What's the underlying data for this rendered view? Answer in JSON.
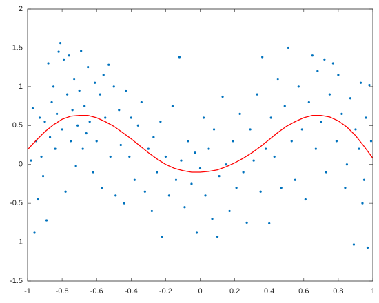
{
  "chart_data": {
    "type": "scatter",
    "xlim": [
      -1,
      1
    ],
    "xticks": [
      -1,
      -0.8,
      -0.6,
      -0.4,
      -0.2,
      0,
      0.2,
      0.4,
      0.6,
      0.8,
      1
    ],
    "ylim": [
      -1.5,
      2
    ],
    "yticks": [
      -1.5,
      -1,
      -0.5,
      0,
      0.5,
      1,
      1.5,
      2
    ],
    "grid": false,
    "series": [
      {
        "type": "scatter",
        "color": "#0072bd",
        "x": [
          -0.98,
          -0.97,
          -0.96,
          -0.95,
          -0.94,
          -0.93,
          -0.92,
          -0.91,
          -0.9,
          -0.89,
          -0.88,
          -0.87,
          -0.86,
          -0.85,
          -0.84,
          -0.83,
          -0.82,
          -0.81,
          -0.8,
          -0.79,
          -0.78,
          -0.77,
          -0.76,
          -0.75,
          -0.74,
          -0.73,
          -0.72,
          -0.71,
          -0.7,
          -0.69,
          -0.68,
          -0.67,
          -0.66,
          -0.65,
          -0.64,
          -0.62,
          -0.61,
          -0.6,
          -0.58,
          -0.57,
          -0.56,
          -0.55,
          -0.53,
          -0.52,
          -0.5,
          -0.49,
          -0.47,
          -0.46,
          -0.44,
          -0.43,
          -0.41,
          -0.4,
          -0.38,
          -0.36,
          -0.34,
          -0.32,
          -0.3,
          -0.28,
          -0.27,
          -0.25,
          -0.23,
          -0.22,
          -0.2,
          -0.18,
          -0.16,
          -0.14,
          -0.12,
          -0.11,
          -0.09,
          -0.07,
          -0.05,
          -0.03,
          -0.02,
          0,
          0.02,
          0.03,
          0.05,
          0.07,
          0.08,
          0.1,
          0.11,
          0.13,
          0.15,
          0.17,
          0.19,
          0.21,
          0.23,
          0.25,
          0.27,
          0.29,
          0.31,
          0.33,
          0.35,
          0.36,
          0.38,
          0.4,
          0.41,
          0.43,
          0.45,
          0.47,
          0.49,
          0.51,
          0.53,
          0.55,
          0.57,
          0.59,
          0.61,
          0.63,
          0.65,
          0.67,
          0.68,
          0.7,
          0.72,
          0.73,
          0.75,
          0.77,
          0.79,
          0.8,
          0.82,
          0.84,
          0.85,
          0.87,
          0.89,
          0.9,
          0.92,
          0.93,
          0.94,
          0.95,
          0.96,
          0.97,
          0.98,
          0.99
        ],
        "values": [
          0.05,
          0.72,
          -0.88,
          0.3,
          -0.45,
          0.6,
          0.1,
          -0.15,
          0.55,
          -0.72,
          1.3,
          0.35,
          0.8,
          1.0,
          0.2,
          0.65,
          1.45,
          1.56,
          0.45,
          1.35,
          -0.35,
          0.9,
          1.4,
          0.3,
          0.7,
          1.1,
          -0.02,
          0.5,
          0.95,
          1.46,
          0.2,
          0.75,
          0.4,
          1.25,
          0.55,
          -0.1,
          1.05,
          0.3,
          0.9,
          -0.3,
          1.15,
          0.6,
          1.28,
          0.1,
          1.0,
          -0.4,
          0.7,
          0.25,
          -0.5,
          0.95,
          0.1,
          0.6,
          -0.2,
          0.5,
          0.8,
          -0.35,
          0.2,
          -0.6,
          0.35,
          -0.1,
          0.55,
          -0.93,
          0.1,
          -0.4,
          0.75,
          -0.2,
          1.38,
          0.05,
          -0.55,
          0.3,
          -0.25,
          0.15,
          -0.88,
          -0.05,
          0.6,
          -0.4,
          0.2,
          -0.7,
          0.45,
          -0.93,
          -0.15,
          0.87,
          0.0,
          -0.6,
          0.3,
          -0.3,
          0.65,
          -0.1,
          -0.75,
          0.45,
          0.05,
          0.9,
          -0.35,
          1.38,
          0.2,
          -0.76,
          0.6,
          0.1,
          1.1,
          -0.3,
          0.75,
          1.5,
          0.3,
          -0.2,
          1.0,
          0.45,
          -0.45,
          0.8,
          1.4,
          0.2,
          1.2,
          0.55,
          1.35,
          -0.1,
          0.9,
          1.3,
          0.3,
          1.15,
          0.65,
          -0.3,
          0.0,
          0.85,
          -1.03,
          0.45,
          0.2,
          1.05,
          -0.5,
          -0.2,
          0.6,
          -1.07,
          1.02,
          0.3
        ]
      },
      {
        "type": "line",
        "color": "#ff0000",
        "x": [
          -1,
          -0.95,
          -0.9,
          -0.85,
          -0.8,
          -0.75,
          -0.7,
          -0.65,
          -0.6,
          -0.55,
          -0.5,
          -0.45,
          -0.4,
          -0.35,
          -0.3,
          -0.25,
          -0.2,
          -0.15,
          -0.1,
          -0.05,
          0,
          0.05,
          0.1,
          0.15,
          0.2,
          0.25,
          0.3,
          0.35,
          0.4,
          0.45,
          0.5,
          0.55,
          0.6,
          0.65,
          0.7,
          0.75,
          0.8,
          0.85,
          0.9,
          0.95,
          1
        ],
        "values": [
          0.19,
          0.31,
          0.42,
          0.51,
          0.58,
          0.62,
          0.63,
          0.63,
          0.6,
          0.55,
          0.49,
          0.41,
          0.33,
          0.24,
          0.15,
          0.07,
          0.0,
          -0.05,
          -0.08,
          -0.1,
          -0.1,
          -0.09,
          -0.07,
          -0.03,
          0.02,
          0.08,
          0.15,
          0.23,
          0.32,
          0.41,
          0.49,
          0.55,
          0.6,
          0.63,
          0.63,
          0.61,
          0.56,
          0.48,
          0.37,
          0.23,
          0.08
        ]
      }
    ]
  }
}
